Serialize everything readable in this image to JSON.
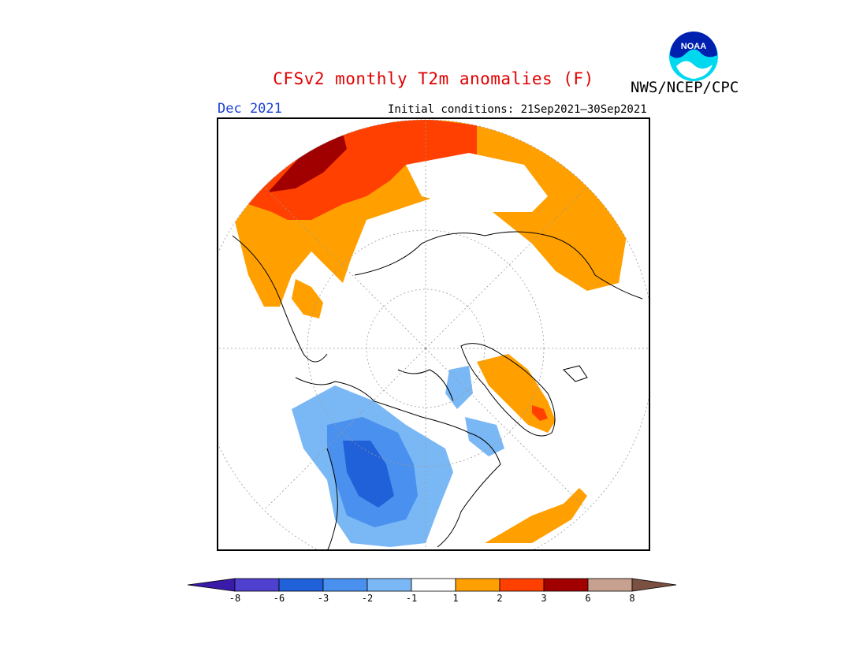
{
  "header": {
    "title": "CFSv2 monthly T2m anomalies (F)",
    "agency": "NWS/NCEP/CPC",
    "logo_text": "NOAA",
    "month": "Dec 2021",
    "initial_conditions": "Initial conditions: 21Sep2021–30Sep2021"
  },
  "colorbar": {
    "colors": [
      "#3a1aa8",
      "#5040d0",
      "#2060d8",
      "#4a90ee",
      "#7ab8f5",
      "#ffffff",
      "#ffa000",
      "#ff4000",
      "#a00000",
      "#c8a090",
      "#7a5040"
    ],
    "tick_labels": [
      "-8",
      "-6",
      "-3",
      "-2",
      "-1",
      "1",
      "2",
      "3",
      "6",
      "8"
    ]
  },
  "map": {
    "projection": "north-polar-stereographic",
    "land_outline_color": "#000000",
    "graticule_color": "#9a9a9a"
  }
}
